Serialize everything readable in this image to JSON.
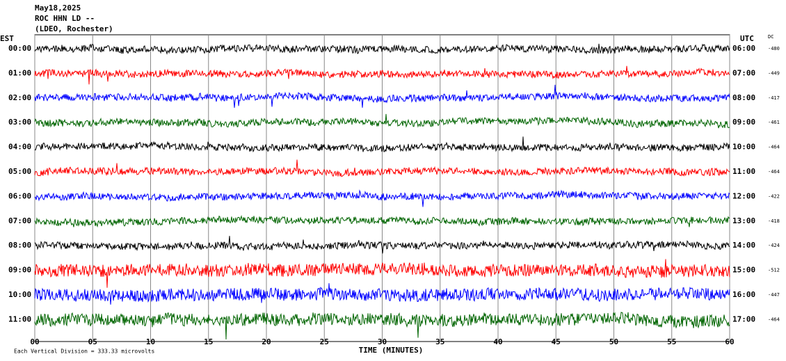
{
  "header": {
    "date": "May18,2025",
    "station": "ROC HHN LD --",
    "network": "(LDEO, Rochester)"
  },
  "left_axis_title": "EST",
  "right_axis_title": "UTC",
  "dc_title": "DC",
  "rows": [
    {
      "est": "00:00",
      "utc": "06:00",
      "dc": "-480",
      "color": "#000000"
    },
    {
      "est": "01:00",
      "utc": "07:00",
      "dc": "-449",
      "color": "#ff0000"
    },
    {
      "est": "02:00",
      "utc": "08:00",
      "dc": "-417",
      "color": "#0000ff"
    },
    {
      "est": "03:00",
      "utc": "09:00",
      "dc": "-461",
      "color": "#006400"
    },
    {
      "est": "04:00",
      "utc": "10:00",
      "dc": "-464",
      "color": "#000000"
    },
    {
      "est": "05:00",
      "utc": "11:00",
      "dc": "-464",
      "color": "#ff0000"
    },
    {
      "est": "06:00",
      "utc": "12:00",
      "dc": "-422",
      "color": "#0000ff"
    },
    {
      "est": "07:00",
      "utc": "13:00",
      "dc": "-418",
      "color": "#006400"
    },
    {
      "est": "08:00",
      "utc": "14:00",
      "dc": "-424",
      "color": "#000000"
    },
    {
      "est": "09:00",
      "utc": "15:00",
      "dc": "-512",
      "color": "#ff0000"
    },
    {
      "est": "10:00",
      "utc": "16:00",
      "dc": "-447",
      "color": "#0000ff"
    },
    {
      "est": "11:00",
      "utc": "17:00",
      "dc": "-464",
      "color": "#006400"
    }
  ],
  "x_ticks": [
    "00",
    "05",
    "10",
    "15",
    "20",
    "25",
    "30",
    "35",
    "40",
    "45",
    "50",
    "55",
    "60"
  ],
  "x_label": "TIME (MINUTES)",
  "footer": "Each Vertical Division = 333.33 microvolts"
}
